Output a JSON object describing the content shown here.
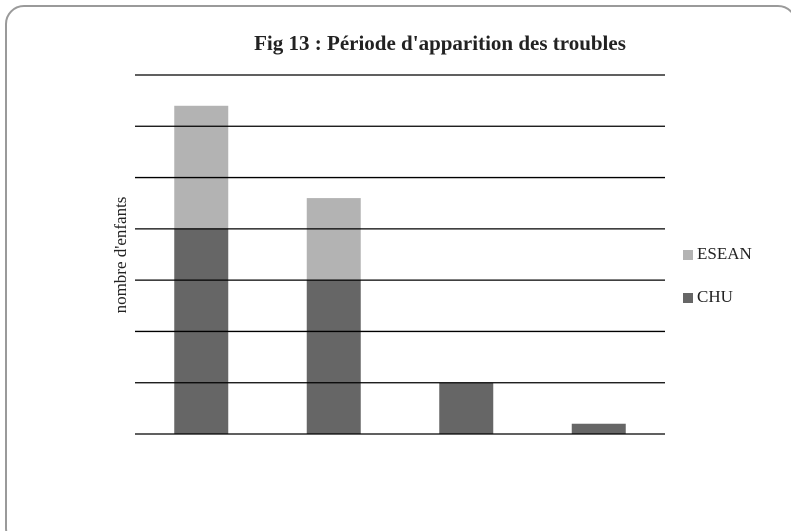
{
  "chart_data": {
    "type": "stacked_bar",
    "title": "Fig 13 : Période d'apparition des troubles",
    "y_label": "nombre d'enfants",
    "categories": [
      null,
      null,
      null,
      null
    ],
    "series": [
      {
        "name": "CHU",
        "color": "#666666",
        "values": [
          4,
          3,
          1,
          0.2
        ]
      },
      {
        "name": "ESEAN",
        "color": "#b3b3b3",
        "values": [
          2.4,
          1.6,
          0,
          0
        ]
      }
    ],
    "ylim": [
      0,
      7
    ],
    "yticks": [
      0,
      1,
      2,
      3,
      4,
      5,
      6,
      7
    ],
    "grid": true,
    "legend": "right"
  }
}
